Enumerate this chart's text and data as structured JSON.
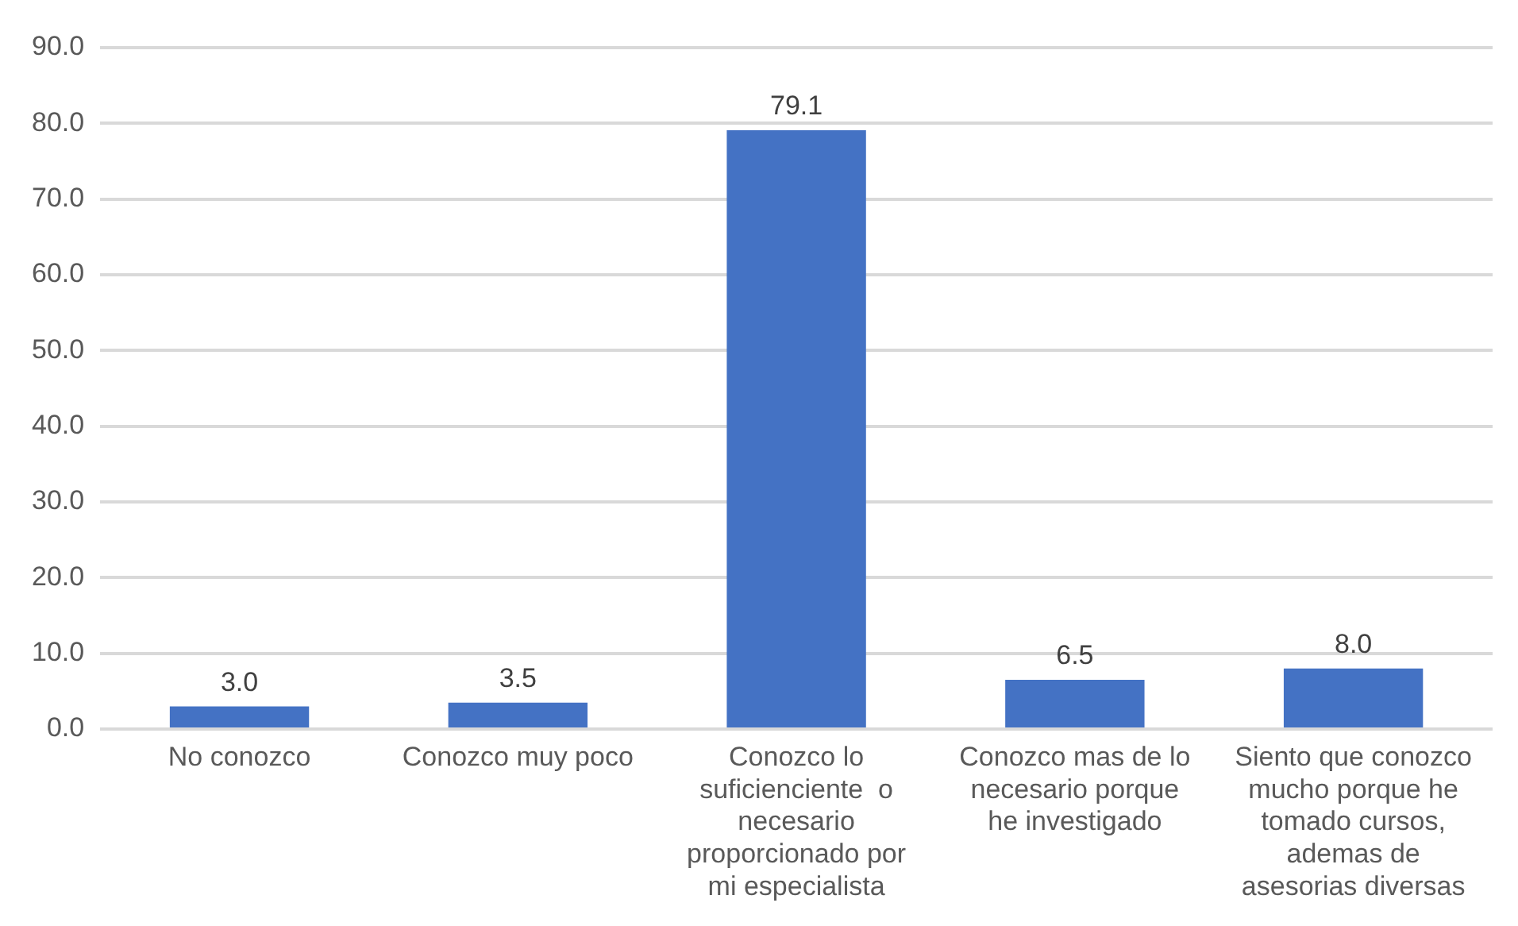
{
  "chart_data": {
    "type": "bar",
    "categories": [
      "No conozco",
      "Conozco muy poco",
      "Conozco lo suficienciente  o necesario proporcionado por mi especialista",
      "Conozco mas de lo necesario porque he investigado",
      "Siento que conozco mucho porque he tomado cursos, ademas de asesorias diversas"
    ],
    "values": [
      3.0,
      3.5,
      79.1,
      6.5,
      8.0
    ],
    "color": "#4472c4",
    "ylim": [
      0,
      90
    ],
    "yticks": [
      {
        "value": 0,
        "label": "0.0"
      },
      {
        "value": 10,
        "label": "10.0"
      },
      {
        "value": 20,
        "label": "20.0"
      },
      {
        "value": 30,
        "label": "30.0"
      },
      {
        "value": 40,
        "label": "40.0"
      },
      {
        "value": 50,
        "label": "50.0"
      },
      {
        "value": 60,
        "label": "60.0"
      },
      {
        "value": 70,
        "label": "70.0"
      },
      {
        "value": 80,
        "label": "80.0"
      },
      {
        "value": 90,
        "label": "90.0"
      }
    ],
    "value_labels": [
      "3.0",
      "3.5",
      "79.1",
      "6.5",
      "8.0"
    ],
    "grid": "y",
    "legend": false
  }
}
